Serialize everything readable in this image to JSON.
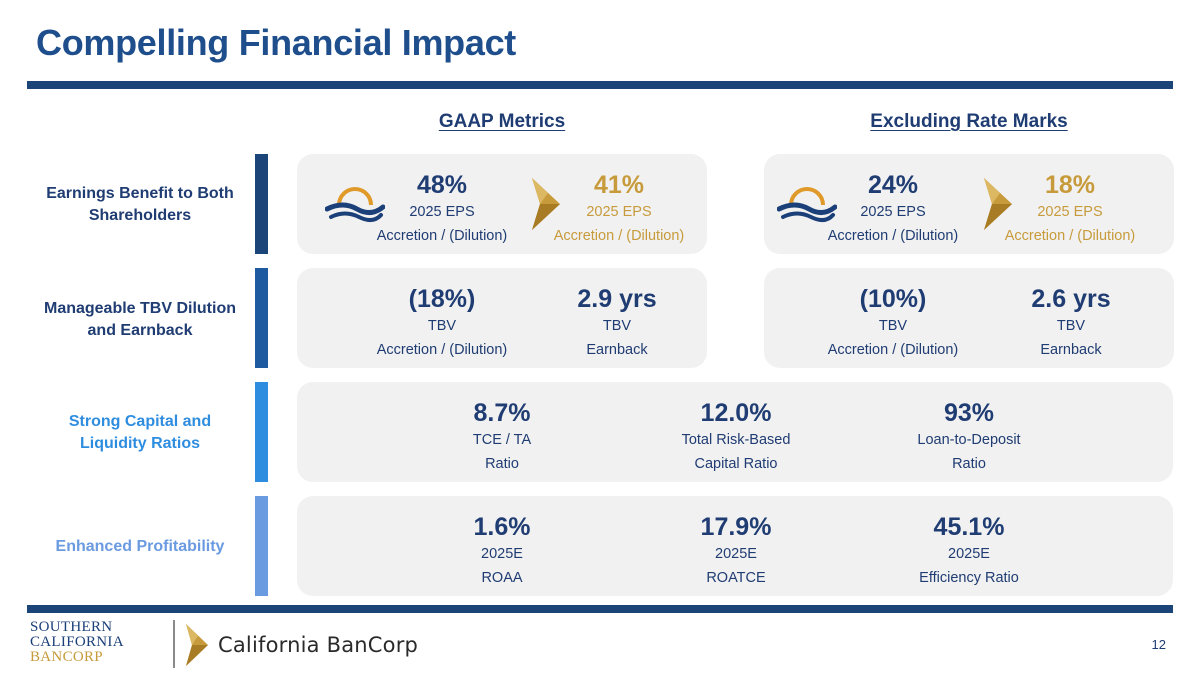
{
  "title": "Compelling Financial Impact",
  "columns": {
    "gaap": "GAAP Metrics",
    "excluding": "Excluding Rate Marks"
  },
  "rows": [
    {
      "label_line1": "Earnings Benefit to Both",
      "label_line2": "Shareholders",
      "color": "#1b4478"
    },
    {
      "label_line1": "Manageable TBV Dilution",
      "label_line2": "and Earnback",
      "color": "#1e5aa0"
    },
    {
      "label_line1": "Strong Capital and",
      "label_line2": "Liquidity Ratios",
      "color": "#2f8de0"
    },
    {
      "label_line1": "Enhanced Profitability",
      "label_line2": "",
      "color": "#6a9ae0"
    }
  ],
  "earnings": {
    "gaap": {
      "scb": {
        "value": "48%",
        "line1": "2025 EPS",
        "line2": "Accretion / (Dilution)"
      },
      "cbc": {
        "value": "41%",
        "line1": "2025 EPS",
        "line2": "Accretion / (Dilution)"
      }
    },
    "excluding": {
      "scb": {
        "value": "24%",
        "line1": "2025 EPS",
        "line2": "Accretion / (Dilution)"
      },
      "cbc": {
        "value": "18%",
        "line1": "2025 EPS",
        "line2": "Accretion / (Dilution)"
      }
    }
  },
  "tbv": {
    "gaap": {
      "dilution": {
        "value": "(18%)",
        "line1": "TBV",
        "line2": "Accretion / (Dilution)"
      },
      "earnback": {
        "value": "2.9 yrs",
        "line1": "TBV",
        "line2": "Earnback"
      }
    },
    "excluding": {
      "dilution": {
        "value": "(10%)",
        "line1": "TBV",
        "line2": "Accretion / (Dilution)"
      },
      "earnback": {
        "value": "2.6 yrs",
        "line1": "TBV",
        "line2": "Earnback"
      }
    }
  },
  "capital": [
    {
      "value": "8.7%",
      "line1": "TCE / TA",
      "line2": "Ratio"
    },
    {
      "value": "12.0%",
      "line1": "Total Risk-Based",
      "line2": "Capital Ratio"
    },
    {
      "value": "93%",
      "line1": "Loan-to-Deposit",
      "line2": "Ratio"
    }
  ],
  "profitability": [
    {
      "value": "1.6%",
      "line1": "2025E",
      "line2": "ROAA"
    },
    {
      "value": "17.9%",
      "line1": "2025E",
      "line2": "ROATCE"
    },
    {
      "value": "45.1%",
      "line1": "2025E",
      "line2": "Efficiency Ratio"
    }
  ],
  "footer": {
    "scb_line1": "SOUTHERN",
    "scb_line2": "CALIFORNIA",
    "scb_line3": "BANCORP",
    "cbc_name": "California BanCorp",
    "page_number": "12"
  },
  "icons": {
    "scb": "sun-wave-icon",
    "cbc": "gold-chevron-icon"
  },
  "colors": {
    "navy": "#1f3c73",
    "gold": "#c79b3b",
    "panel": "#f1f1f1",
    "rule": "#1b4478"
  }
}
